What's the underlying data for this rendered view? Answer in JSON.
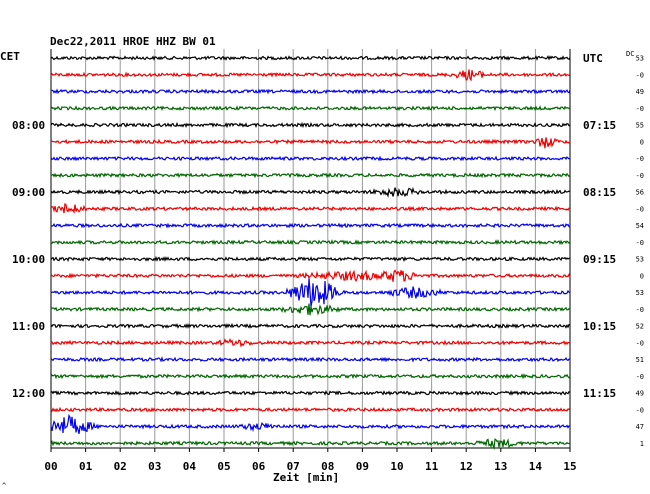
{
  "chart_data": {
    "type": "line",
    "title": "Dec22,2011   HROE HHZ BW 01",
    "left_header": "CET",
    "right_header": "UTC",
    "dc_header": "DC",
    "xlabel": "Zeit [min]",
    "xlim": [
      0,
      15
    ],
    "x_ticks": [
      "00",
      "01",
      "02",
      "03",
      "04",
      "05",
      "06",
      "07",
      "08",
      "09",
      "10",
      "11",
      "12",
      "13",
      "14",
      "15"
    ],
    "grid": true,
    "trace_colors": [
      "#000000",
      "#ee0000",
      "#0000ee",
      "#006600"
    ],
    "left_hour_labels": [
      {
        "trace": 4,
        "text": "08:00"
      },
      {
        "trace": 8,
        "text": "09:00"
      },
      {
        "trace": 12,
        "text": "10:00"
      },
      {
        "trace": 16,
        "text": "11:00"
      },
      {
        "trace": 20,
        "text": "12:00"
      }
    ],
    "right_hour_labels": [
      {
        "trace": 0,
        "text": "UTC"
      },
      {
        "trace": 4,
        "text": "07:15"
      },
      {
        "trace": 8,
        "text": "08:15"
      },
      {
        "trace": 12,
        "text": "09:15"
      },
      {
        "trace": 16,
        "text": "10:15"
      },
      {
        "trace": 20,
        "text": "11:15"
      }
    ],
    "dc_values": [
      "53",
      "-0",
      "49",
      "-0",
      "55",
      "0",
      "-0",
      "-0",
      "56",
      "-0",
      "54",
      "-0",
      "53",
      "0",
      "53",
      "-0",
      "52",
      "-0",
      "51",
      "-0",
      "49",
      "-0",
      "47",
      "1"
    ],
    "events": [
      {
        "trace": 1,
        "minute": 12.1,
        "width": 0.6,
        "amplitude": 5
      },
      {
        "trace": 5,
        "minute": 14.3,
        "width": 0.4,
        "amplitude": 6
      },
      {
        "trace": 8,
        "minute": 10.0,
        "width": 0.9,
        "amplitude": 4
      },
      {
        "trace": 9,
        "minute": 0.5,
        "width": 0.6,
        "amplitude": 5
      },
      {
        "trace": 13,
        "minute": 8.8,
        "width": 2.0,
        "amplitude": 4
      },
      {
        "trace": 13,
        "minute": 10.0,
        "width": 0.8,
        "amplitude": 6
      },
      {
        "trace": 14,
        "minute": 7.6,
        "width": 0.9,
        "amplitude": 16
      },
      {
        "trace": 14,
        "minute": 10.5,
        "width": 1.0,
        "amplitude": 5
      },
      {
        "trace": 15,
        "minute": 7.5,
        "width": 1.0,
        "amplitude": 5
      },
      {
        "trace": 17,
        "minute": 5.3,
        "width": 0.7,
        "amplitude": 3
      },
      {
        "trace": 22,
        "minute": 0.5,
        "width": 0.9,
        "amplitude": 10
      },
      {
        "trace": 22,
        "minute": 6.0,
        "width": 0.8,
        "amplitude": 3
      },
      {
        "trace": 23,
        "minute": 12.9,
        "width": 0.8,
        "amplitude": 4
      }
    ],
    "extras": {
      "footer_mark": "^"
    }
  }
}
